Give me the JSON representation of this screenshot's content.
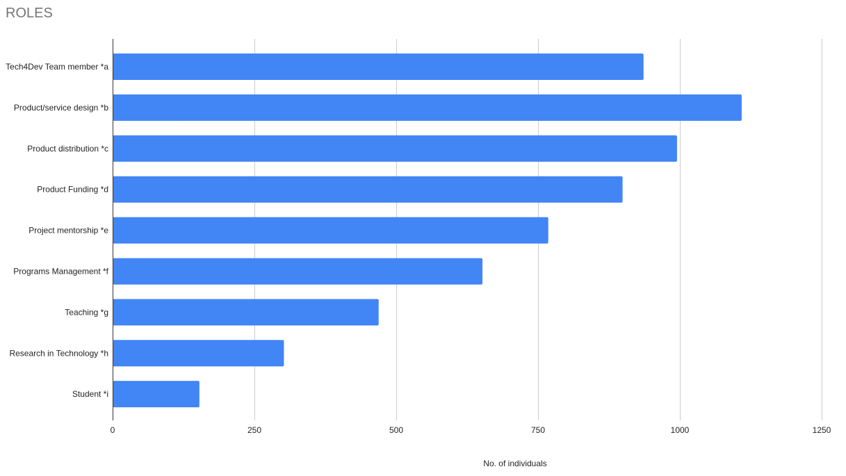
{
  "chart_data": {
    "type": "bar",
    "orientation": "horizontal",
    "title": "ROLES",
    "xlabel": "No. of individuals",
    "ylabel": "",
    "xlim": [
      0,
      1250
    ],
    "xticks": [
      0,
      250,
      500,
      750,
      1000,
      1250
    ],
    "grid": true,
    "bar_color": "#4285f4",
    "categories": [
      "Tech4Dev Team member *a",
      "Product/service design *b",
      "Product distribution *c",
      "Product Funding *d",
      "Project mentorship *e",
      "Programs Management *f",
      "Teaching *g",
      "Research in Technology *h",
      "Student *i"
    ],
    "values": [
      936,
      1109,
      995,
      899,
      768,
      652,
      469,
      302,
      153
    ]
  }
}
